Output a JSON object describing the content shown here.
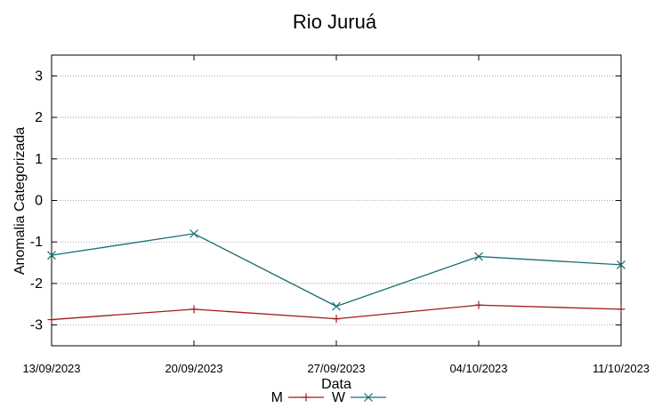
{
  "chart_data": {
    "type": "line",
    "title": "Rio Juruá",
    "xlabel": "Data",
    "ylabel": "Anomalia Categorizada",
    "x": [
      "13/09/2023",
      "20/09/2023",
      "27/09/2023",
      "04/10/2023",
      "11/10/2023"
    ],
    "ylim": [
      -3.5,
      3.5
    ],
    "yticks": [
      "3",
      "2",
      "1",
      "0",
      "-1",
      "-2",
      "-3"
    ],
    "grid": "horizontal dotted",
    "legend_position": "bottom-center",
    "series": [
      {
        "name": "M",
        "color": "#a11a1a",
        "marker": "plus",
        "values": [
          -2.87,
          -2.62,
          -2.85,
          -2.52,
          -2.62
        ]
      },
      {
        "name": "W",
        "color": "#1a6e70",
        "marker": "x",
        "values": [
          -1.32,
          -0.8,
          -2.55,
          -1.35,
          -1.55
        ]
      }
    ]
  }
}
